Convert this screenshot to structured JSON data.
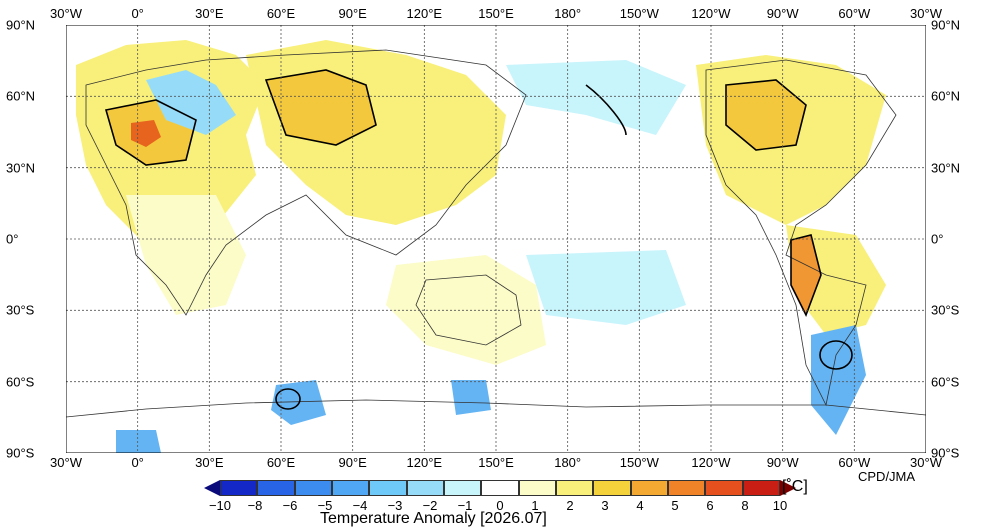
{
  "map": {
    "lon_labels": [
      "30°W",
      "0°",
      "30°E",
      "60°E",
      "90°E",
      "120°E",
      "150°E",
      "180°",
      "150°W",
      "120°W",
      "90°W",
      "60°W",
      "30°W"
    ],
    "lat_labels": [
      "90°N",
      "60°N",
      "30°N",
      "0°",
      "30°S",
      "60°S",
      "90°S"
    ],
    "credit": "CPD/JMA",
    "grid": true,
    "colors": {
      "cold": [
        "#1e46dc",
        "#3c8cf0",
        "#64b4f4",
        "#96dcf8",
        "#c8f4fc"
      ],
      "warm": [
        "#fcfcc8",
        "#f8f07a",
        "#f4c83c",
        "#f09632",
        "#e6641e"
      ]
    }
  },
  "colorbar": {
    "ticks": [
      "−10",
      "−8",
      "−6",
      "−5",
      "−4",
      "−3",
      "−2",
      "−1",
      "0",
      "1",
      "2",
      "3",
      "4",
      "5",
      "6",
      "8",
      "10"
    ],
    "unit": "[˚C]",
    "title": "Temperature Anomaly [2026.07]",
    "colors": [
      "#08087a",
      "#1428c8",
      "#2864e6",
      "#3c8cf0",
      "#50a8f4",
      "#6ec8f8",
      "#96dcf8",
      "#c8f4fc",
      "#ffffff",
      "#fcfcc8",
      "#f8f07a",
      "#f4d23c",
      "#f4aa32",
      "#f08228",
      "#e6501e",
      "#c81e14",
      "#7a0000"
    ]
  }
}
